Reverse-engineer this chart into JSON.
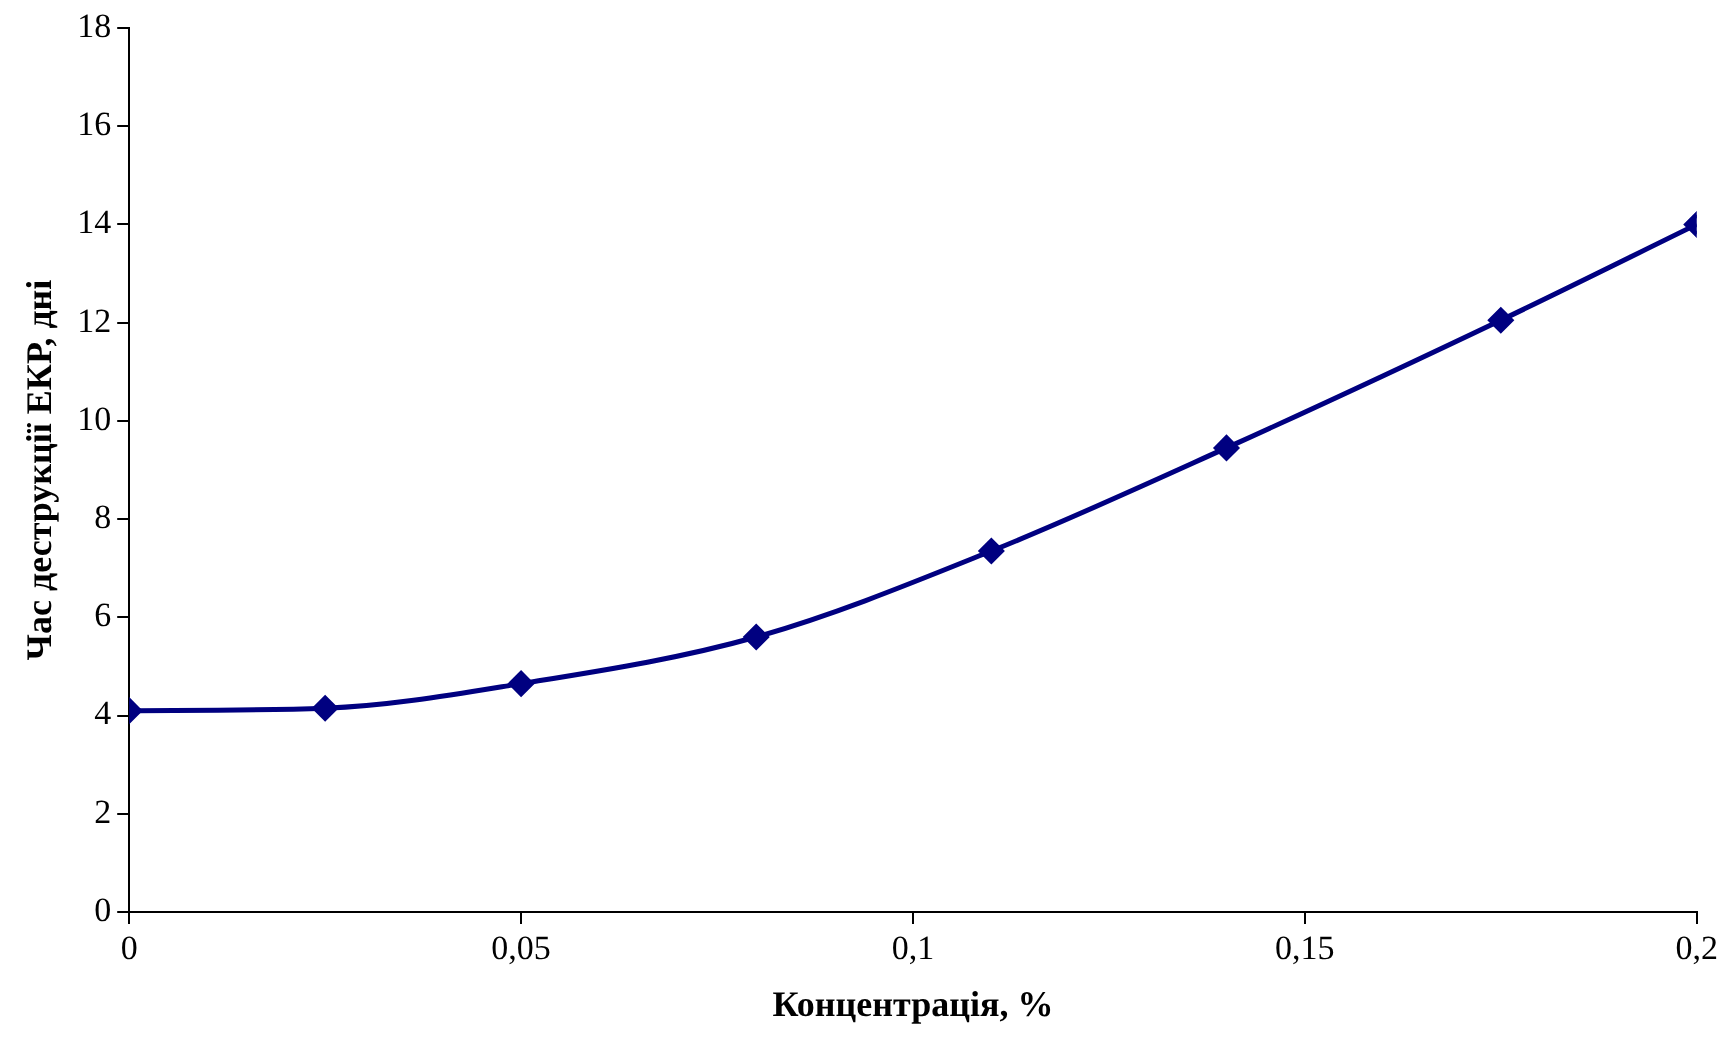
{
  "chart_data": {
    "type": "line",
    "xlabel": "Концентрація, %",
    "ylabel": "Час деструкції ЕКР, дні",
    "x": [
      0,
      0.025,
      0.05,
      0.08,
      0.11,
      0.14,
      0.175,
      0.2
    ],
    "series": [
      {
        "color": "#000080",
        "values": [
          4.1,
          4.15,
          4.65,
          5.6,
          7.35,
          9.45,
          12.05,
          14.0
        ]
      }
    ],
    "xlim": [
      0,
      0.2
    ],
    "xticks": [
      0,
      {
        "value": 0.05,
        "label": "0,05"
      },
      {
        "value": 0.1,
        "label": "0,1"
      },
      {
        "value": 0.15,
        "label": "0,15"
      },
      {
        "value": 0.2,
        "label": "0,2"
      }
    ],
    "ylim": [
      0,
      18
    ],
    "yticks": [
      0,
      2,
      4,
      6,
      8,
      10,
      12,
      14,
      16,
      18
    ],
    "grid": false,
    "legend": false,
    "marker": "diamond",
    "line_style": "solid"
  }
}
